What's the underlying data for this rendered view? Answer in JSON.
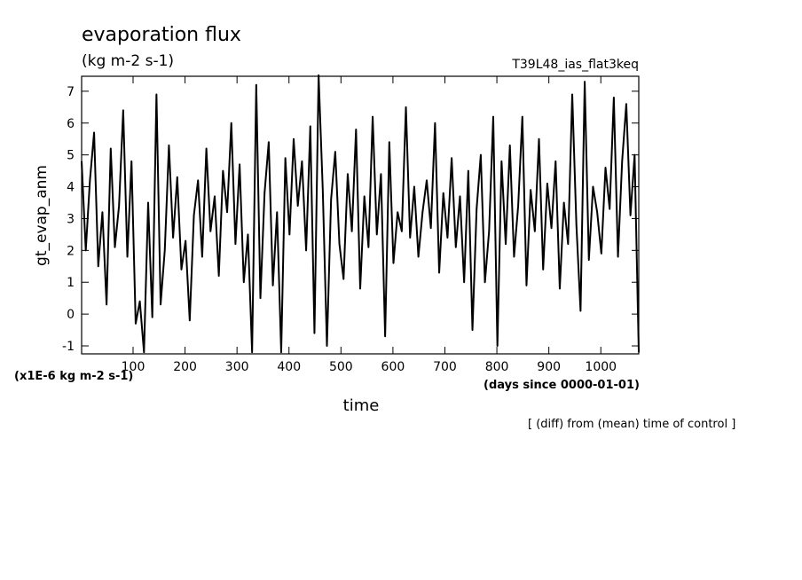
{
  "chart_data": {
    "type": "line",
    "title": "evaporation flux",
    "subtitle": "(kg m-2 s-1)",
    "dataset_label": "T39L48_ias_flat3keq",
    "y_label": "gt_evap_anm",
    "y_unit_label": "(x1E-6 kg m-2 s-1)",
    "x_label": "time",
    "x_unit_label": "(days since 0000-01-01)",
    "note": "[ (diff) from (mean) time of control ]",
    "color": "#000000",
    "x": [
      1,
      9,
      17,
      25,
      33,
      41,
      49,
      57,
      65,
      73,
      81,
      89,
      97,
      105,
      113,
      121,
      129,
      137,
      145,
      153,
      161,
      169,
      177,
      185,
      193,
      201,
      209,
      217,
      225,
      233,
      241,
      249,
      257,
      265,
      273,
      281,
      289,
      297,
      305,
      313,
      321,
      329,
      337,
      345,
      353,
      361,
      369,
      377,
      385,
      393,
      401,
      409,
      417,
      425,
      433,
      441,
      449,
      457,
      465,
      473,
      481,
      489,
      497,
      505,
      513,
      521,
      529,
      537,
      545,
      553,
      561,
      569,
      577,
      585,
      593,
      601,
      609,
      617,
      625,
      633,
      641,
      649,
      657,
      665,
      673,
      681,
      689,
      697,
      705,
      713,
      721,
      729,
      737,
      745,
      753,
      761,
      769,
      777,
      785,
      793,
      801,
      809,
      817,
      825,
      833,
      841,
      849,
      857,
      865,
      873,
      881,
      889,
      897,
      905,
      913,
      921,
      929,
      937,
      945,
      953,
      961,
      969,
      977,
      985,
      993,
      1001,
      1009,
      1017,
      1025,
      1033,
      1041,
      1049,
      1057,
      1065,
      1073
    ],
    "values": [
      4.8,
      2.0,
      4.2,
      5.7,
      1.5,
      3.2,
      0.3,
      5.2,
      2.1,
      3.4,
      6.4,
      1.8,
      4.8,
      -0.3,
      0.4,
      -1.2,
      3.5,
      -0.1,
      6.9,
      0.3,
      2.0,
      5.3,
      2.4,
      4.3,
      1.4,
      2.3,
      -0.2,
      3.1,
      4.2,
      1.8,
      5.2,
      2.6,
      3.7,
      1.2,
      4.5,
      3.2,
      6.0,
      2.2,
      4.7,
      1.0,
      2.5,
      -1.2,
      7.2,
      0.5,
      3.8,
      5.4,
      0.9,
      3.2,
      -1.2,
      4.9,
      2.5,
      5.5,
      3.4,
      4.8,
      2.0,
      5.9,
      -0.6,
      7.5,
      3.9,
      -1.0,
      3.6,
      5.1,
      2.2,
      1.1,
      4.4,
      2.6,
      5.8,
      0.8,
      3.7,
      2.1,
      6.2,
      2.5,
      4.4,
      -0.7,
      5.4,
      1.6,
      3.2,
      2.6,
      6.5,
      2.4,
      4.0,
      1.8,
      3.2,
      4.2,
      2.7,
      6.0,
      1.3,
      3.8,
      2.4,
      4.9,
      2.1,
      3.7,
      1.0,
      4.5,
      -0.5,
      3.3,
      5.0,
      1.0,
      2.6,
      6.2,
      -1.0,
      4.8,
      2.2,
      5.3,
      1.8,
      3.4,
      6.2,
      0.9,
      3.9,
      2.6,
      5.5,
      1.4,
      4.1,
      2.7,
      4.8,
      0.8,
      3.5,
      2.2,
      6.9,
      2.8,
      0.1,
      7.3,
      1.7,
      4.0,
      3.2,
      1.9,
      4.6,
      3.3,
      6.8,
      1.8,
      4.8,
      6.6,
      3.1,
      5.0,
      -1.2
    ],
    "xlim": [
      1,
      1073
    ],
    "ylim": [
      -1.25,
      7.47
    ],
    "xticks": [
      100,
      200,
      300,
      400,
      500,
      600,
      700,
      800,
      900,
      1000
    ],
    "yticks": [
      -1,
      0,
      1,
      2,
      3,
      4,
      5,
      6,
      7
    ]
  }
}
